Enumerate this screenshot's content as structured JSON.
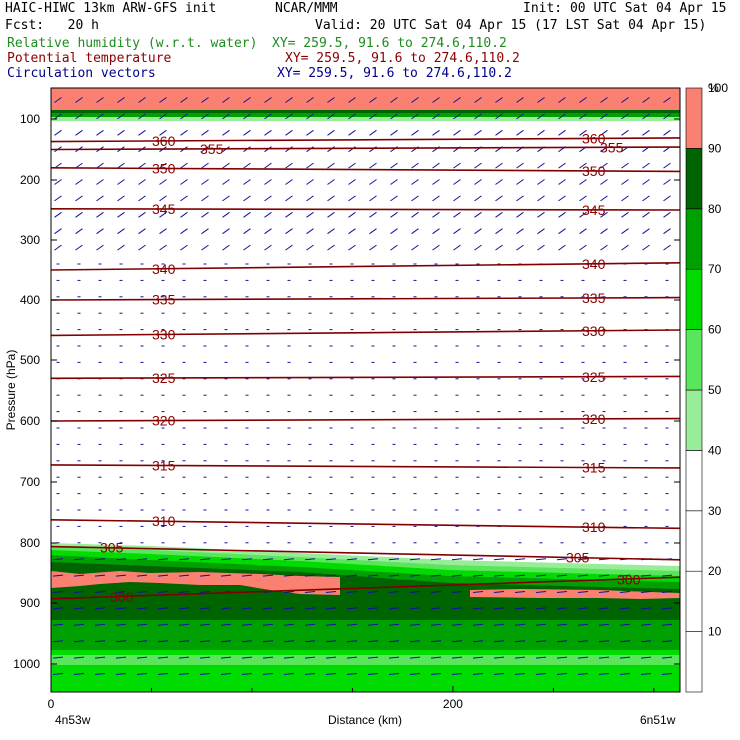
{
  "header": {
    "title": "HAIC-HIWC 13km ARW-GFS init",
    "org": "NCAR/MMM",
    "init": "Init: 00 UTC Sat 04 Apr 15",
    "fcst": "Fcst:   20 h",
    "valid": "Valid: 20 UTC Sat 04 Apr 15 (17 LST Sat 04 Apr 15)",
    "rh_label": "Relative humidity (w.r.t. water)",
    "rh_xy": "XY= 259.5, 91.6 to 274.6,110.2",
    "theta_label": "Potential temperature",
    "theta_xy": "XY= 259.5, 91.6 to 274.6,110.2",
    "vec_label": "Circulation vectors",
    "vec_xy": "XY= 259.5, 91.6 to 274.6,110.2"
  },
  "colors": {
    "rh_text": "#1e8c1e",
    "theta_text": "#8b0000",
    "vec_text": "#00008b",
    "isentrope": "#800000",
    "vector": "#1010a0",
    "rh_100": "#fa8072",
    "rh_90": "#006400",
    "rh_80": "#00a000",
    "rh_70": "#00dc00",
    "rh_60": "#5ae65a",
    "rh_50": "#98ee98"
  },
  "chart_data": {
    "type": "cross-section",
    "ylabel": "Pressure (hPa)",
    "xlabel": "Distance (km)",
    "x_ticks": [
      "0",
      "200"
    ],
    "y_ticks": [
      "100",
      "200",
      "300",
      "400",
      "500",
      "600",
      "700",
      "800",
      "900",
      "1000"
    ],
    "x_endpoint_left": "4n53w",
    "x_endpoint_right": "6n51w",
    "xlim": [
      0,
      313
    ],
    "ylim": [
      1045,
      60
    ],
    "colorbar": {
      "unit": "%",
      "levels": [
        10,
        20,
        30,
        40,
        50,
        60,
        70,
        80,
        90,
        100
      ],
      "colors_keys": [
        "rh_50",
        "rh_60",
        "rh_70",
        "rh_80",
        "rh_90",
        "rh_100"
      ]
    },
    "isentropes": [
      {
        "theta": 360,
        "label": "360",
        "p_left": 137,
        "p_right": 131
      },
      {
        "theta": 355,
        "label": "355",
        "p_left": 150,
        "p_right": 146
      },
      {
        "theta": 350,
        "label": "350",
        "p_left": 180,
        "p_right": 186
      },
      {
        "theta": 345,
        "label": "345",
        "p_left": 248,
        "p_right": 250
      },
      {
        "theta": 340,
        "label": "340",
        "p_left": 350,
        "p_right": 338
      },
      {
        "theta": 335,
        "label": "335",
        "p_left": 400,
        "p_right": 396
      },
      {
        "theta": 330,
        "label": "330",
        "p_left": 459,
        "p_right": 450
      },
      {
        "theta": 325,
        "label": "325",
        "p_left": 530,
        "p_right": 527
      },
      {
        "theta": 320,
        "label": "320",
        "p_left": 600,
        "p_right": 596
      },
      {
        "theta": 315,
        "label": "315",
        "p_left": 672,
        "p_right": 677
      },
      {
        "theta": 310,
        "label": "310",
        "p_left": 762,
        "p_right": 776
      },
      {
        "theta": 305,
        "label": "305",
        "p_left": 806,
        "p_right": 828
      },
      {
        "theta": 300,
        "label": "300",
        "p_left": 893,
        "p_right": 857
      }
    ],
    "rh_regions_note": "moist layer ~800-1000 hPa, saturated (>100%) near 840-880 hPa; near 100% at model top (~60-100 hPa)"
  }
}
